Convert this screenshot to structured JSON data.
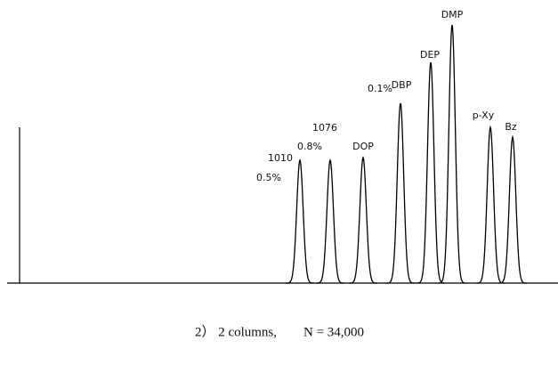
{
  "chart_data": {
    "type": "chromatogram",
    "caption": "2） 2 columns,　　N = 34,000",
    "categories": [
      "1010",
      "1076",
      "DOP",
      "DBP",
      "DEP",
      "DMP",
      "p-Xy",
      "Bz"
    ],
    "x": [
      337,
      371,
      408,
      450,
      484,
      508,
      551,
      576
    ],
    "values": [
      138,
      138,
      141,
      202,
      248,
      290,
      175,
      164
    ],
    "annotations": [
      "0.5%",
      "0.8%",
      "0.1%"
    ],
    "xlim": [
      0,
      627
    ],
    "ylim": [
      0,
      300
    ],
    "color": "#000000"
  }
}
